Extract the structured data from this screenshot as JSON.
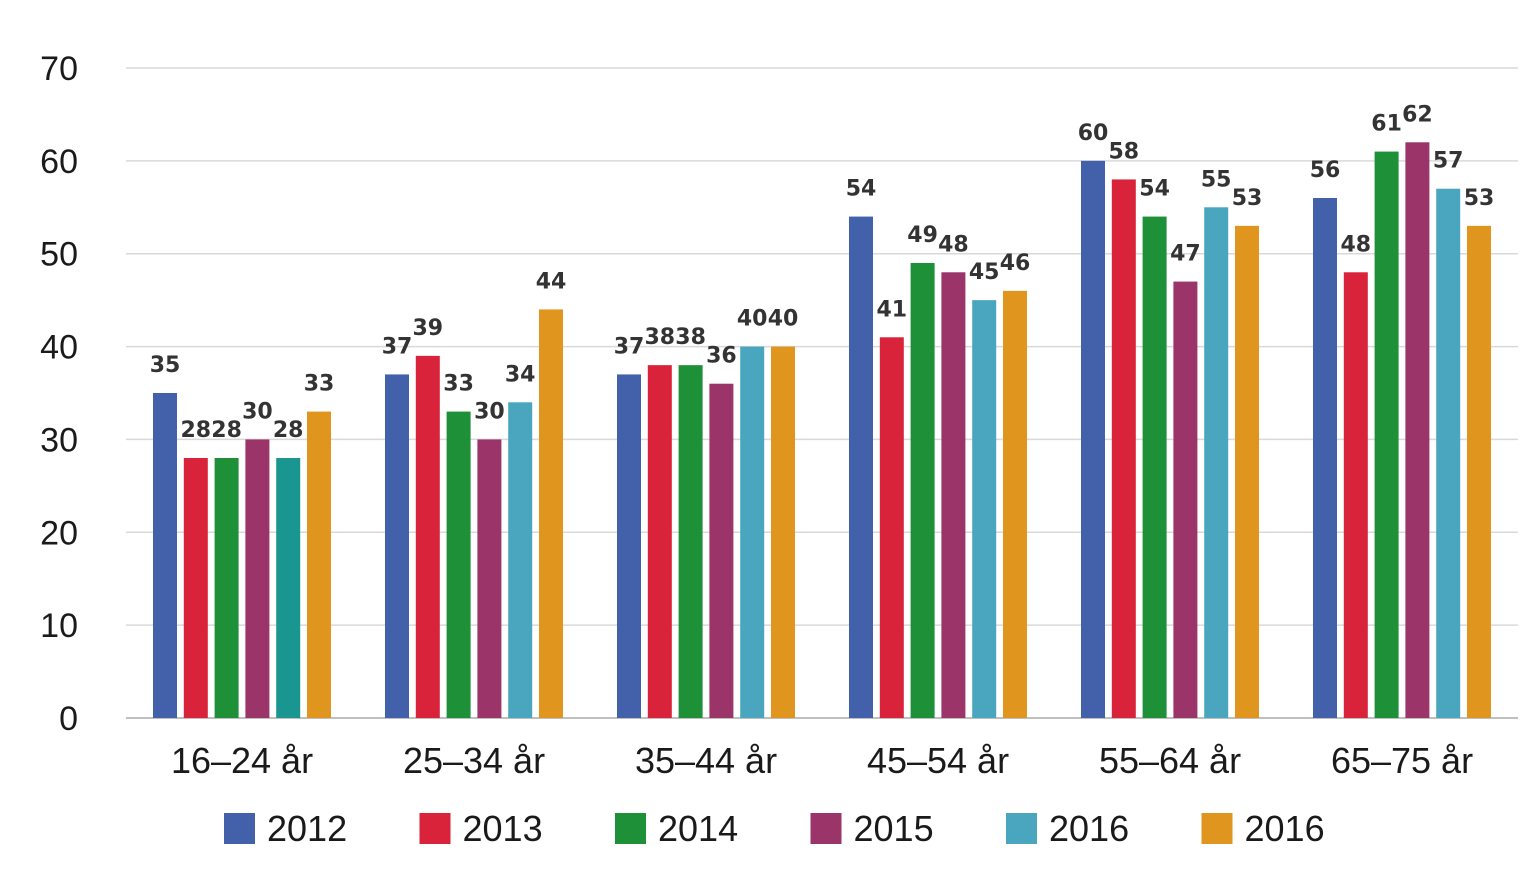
{
  "chart_data": {
    "type": "bar",
    "title": "",
    "xlabel": "",
    "ylabel": "",
    "ylim": [
      0,
      70
    ],
    "yticks": [
      0,
      10,
      20,
      30,
      40,
      50,
      60,
      70
    ],
    "grid": true,
    "legend_position": "bottom",
    "categories": [
      "16–24 år",
      "25–34 år",
      "35–44 år",
      "45–54 år",
      "55–64 år",
      "65–75 år"
    ],
    "series": [
      {
        "name": "2012",
        "color": "#4361ab",
        "values": [
          35,
          37,
          37,
          54,
          60,
          56
        ],
        "labels": [
          "35",
          "37",
          "37",
          "54",
          "60",
          "56"
        ]
      },
      {
        "name": "2013",
        "color": "#d8233a",
        "values": [
          28,
          39,
          38,
          41,
          58,
          48
        ],
        "labels": [
          "28",
          "39",
          "38",
          "41",
          "58",
          "48"
        ]
      },
      {
        "name": "2014",
        "color": "#1e9038",
        "values": [
          28,
          33,
          38,
          49,
          54,
          61
        ],
        "labels": [
          "28",
          "33",
          "38",
          "49",
          "54",
          "61"
        ]
      },
      {
        "name": "2015",
        "color": "#9b3468",
        "values": [
          30,
          30,
          36,
          48,
          47,
          62
        ],
        "labels": [
          "30",
          "30",
          "36",
          "48",
          "47",
          "62"
        ]
      },
      {
        "name": "2016",
        "color": "#4aa6bf",
        "values": [
          28,
          34,
          40,
          45,
          55,
          57
        ],
        "labels": [
          "28",
          "34",
          "40",
          "45",
          "55",
          "57"
        ],
        "point_colors": [
          "#1a9690",
          null,
          null,
          null,
          null,
          null
        ]
      },
      {
        "name": "2016",
        "color": "#e0951e",
        "values": [
          33,
          44,
          40,
          46,
          53,
          53
        ],
        "labels": [
          "33",
          "44",
          "40",
          "46",
          "53",
          "53"
        ]
      }
    ]
  }
}
